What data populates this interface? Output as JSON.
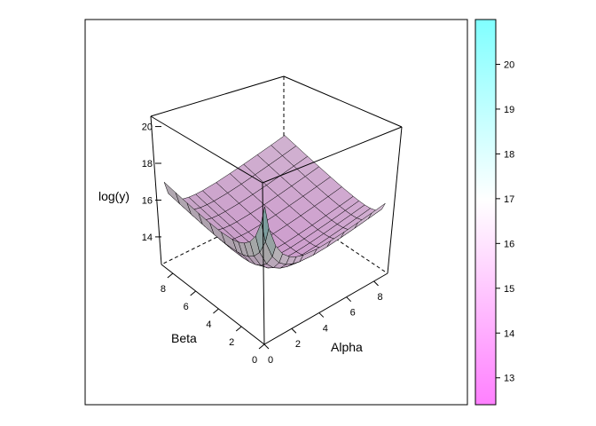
{
  "chart_data": {
    "type": "surface3d",
    "title": "",
    "xlabel": "Alpha",
    "ylabel": "Beta",
    "zlabel": "log(y)",
    "x_ticks": [
      "0",
      "2",
      "4",
      "6",
      "8"
    ],
    "y_ticks": [
      "0",
      "2",
      "4",
      "6",
      "8"
    ],
    "z_ticks": [
      "14",
      "16",
      "18",
      "20"
    ],
    "xlim": [
      0,
      9
    ],
    "ylim": [
      0,
      9
    ],
    "zlim": [
      12.5,
      20.8
    ],
    "surface": {
      "x_grid": [
        0.2,
        0.5,
        1.0,
        1.5,
        2.0,
        2.5,
        3.0,
        4.0,
        5.0,
        6.0,
        7.0,
        8.0,
        9.0
      ],
      "y_grid": [
        0.2,
        0.5,
        1.0,
        1.5,
        2.0,
        2.5,
        3.0,
        4.0,
        5.0,
        6.0,
        7.0,
        8.0,
        9.0
      ],
      "z_at_alpha0_beta0": 17.8,
      "z_at_alpha0_beta9": 14.6,
      "z_at_alpha9_beta0": 14.3,
      "z_minimum_approx": 13.4
    },
    "colorkey": {
      "ticks": [
        "13",
        "14",
        "15",
        "16",
        "17",
        "18",
        "19",
        "20"
      ],
      "range": [
        12.4,
        21.0
      ],
      "low_color": "#ff80ff",
      "mid_color": "#ffffff",
      "high_color": "#80ffff"
    },
    "colors": {
      "frame": "#000000",
      "mesh_line": "#000000"
    }
  }
}
